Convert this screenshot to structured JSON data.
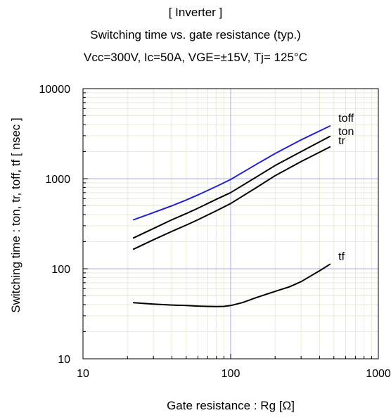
{
  "chart_data": {
    "type": "line",
    "title": "[ Inverter ]",
    "subtitle": "Switching time  vs.  gate resistance (typ.)",
    "conditions": "Vcc=300V,  Ic=50A,  VGE=±15V,  Tj= 125°C",
    "xlabel": "Gate resistance : Rg [Ω]",
    "ylabel": "Switching time : ton, tr, toff, tf  [ nsec ]",
    "x_scale": "log",
    "y_scale": "log",
    "xlim": [
      10,
      1000
    ],
    "ylim": [
      10,
      10000
    ],
    "x_ticks": [
      10,
      100,
      1000
    ],
    "y_ticks": [
      10,
      100,
      1000,
      10000
    ],
    "x_tick_labels": [
      "10",
      "100",
      "1000"
    ],
    "y_tick_labels": [
      "10",
      "100",
      "1000",
      "10000"
    ],
    "grid": true,
    "series": [
      {
        "name": "toff",
        "color": "#2222cc",
        "x": [
          22,
          30,
          40,
          50,
          60,
          80,
          100,
          150,
          200,
          300,
          470
        ],
        "y": [
          350,
          420,
          500,
          580,
          660,
          820,
          980,
          1450,
          1900,
          2700,
          3850
        ]
      },
      {
        "name": "ton",
        "color": "#000000",
        "x": [
          22,
          30,
          40,
          50,
          60,
          80,
          100,
          150,
          200,
          300,
          470
        ],
        "y": [
          220,
          280,
          350,
          410,
          470,
          590,
          700,
          1050,
          1400,
          2000,
          2950
        ]
      },
      {
        "name": "tr",
        "color": "#000000",
        "x": [
          22,
          30,
          40,
          50,
          60,
          80,
          100,
          150,
          200,
          300,
          470
        ],
        "y": [
          165,
          210,
          260,
          305,
          350,
          440,
          530,
          800,
          1080,
          1550,
          2250
        ]
      },
      {
        "name": "tf",
        "color": "#000000",
        "x": [
          22,
          30,
          40,
          50,
          60,
          70,
          80,
          90,
          100,
          120,
          150,
          200,
          250,
          300,
          400,
          470
        ],
        "y": [
          42,
          40.5,
          39.5,
          39,
          38.5,
          38.2,
          38,
          38.2,
          39,
          42,
          48,
          56,
          63,
          72,
          95,
          112
        ]
      }
    ]
  }
}
